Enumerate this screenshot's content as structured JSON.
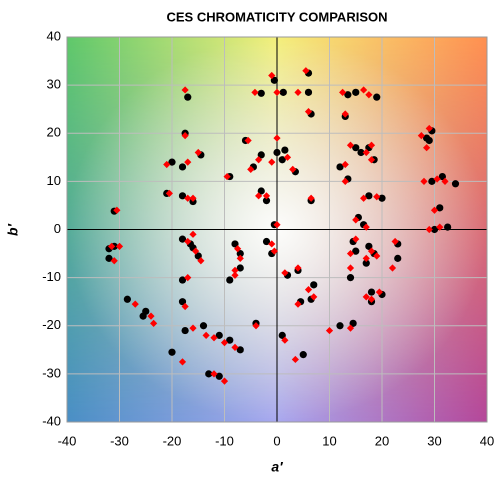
{
  "chart_data": {
    "type": "scatter",
    "title": "CES CHROMATICITY COMPARISON",
    "x_label": "a′",
    "y_label": "b′",
    "xlim": [
      -40,
      40
    ],
    "ylim": [
      -40,
      40
    ],
    "xticks": [
      -40,
      -30,
      -20,
      -10,
      0,
      10,
      20,
      30,
      40
    ],
    "yticks": [
      -40,
      -30,
      -20,
      -10,
      0,
      10,
      20,
      30,
      40
    ],
    "grid": true,
    "series": [
      {
        "color": "#000000",
        "marker": "circle",
        "x": [
          -0.5,
          6,
          -3,
          1.2,
          6,
          13.5,
          15,
          19,
          -17,
          -17.5,
          -14.5,
          -9,
          -20,
          -18,
          -21,
          -18,
          -16,
          -31,
          -6,
          -3,
          0,
          1.5,
          1,
          3.5,
          -4.5,
          -3,
          -2,
          -0.5,
          6.5,
          6.5,
          13,
          17.5,
          15,
          16,
          18.5,
          12,
          13.5,
          17.5,
          20,
          15.5,
          16.5,
          28.5,
          29.5,
          29,
          29.5,
          31.5,
          34,
          31,
          30,
          32.5,
          -32,
          -31,
          -32,
          -18,
          -16.5,
          -16,
          -15,
          -8,
          -7,
          -7,
          -9,
          -2,
          -1,
          2,
          4,
          7,
          -18,
          -18,
          -28.5,
          -25,
          -25.5,
          -17.5,
          -14,
          -11,
          -4,
          -20,
          -13,
          -11,
          -9,
          -7,
          1,
          5,
          4.5,
          6.5,
          12,
          14.5,
          14,
          15,
          14.5,
          17,
          17.5,
          18,
          18,
          20,
          18.5,
          23,
          23
        ],
        "y": [
          31,
          32.5,
          28.3,
          28.5,
          28.5,
          28,
          28.5,
          27.5,
          27.5,
          20,
          15.5,
          11,
          14,
          13,
          7.5,
          7,
          5.8,
          3.8,
          18.5,
          15.5,
          16,
          16.5,
          14.5,
          12,
          13,
          8,
          6,
          1,
          6,
          24,
          23.5,
          17,
          17,
          16,
          14.5,
          13,
          10.5,
          7,
          6.5,
          2.5,
          1,
          19,
          20.5,
          18.5,
          10,
          11,
          9.5,
          4.5,
          0,
          0.5,
          -4,
          -3.5,
          -6,
          -2,
          -3,
          -3.8,
          -5.5,
          -3,
          -5,
          -8,
          -10.5,
          -2.5,
          -5,
          -9.5,
          -8.5,
          -11.5,
          -10.5,
          -15,
          -14.5,
          -17,
          -18,
          -21,
          -20,
          -22,
          -19.5,
          -25.5,
          -30,
          -30.5,
          -23,
          -25,
          -22,
          -26,
          -15,
          -14.5,
          -20,
          -19.5,
          -10,
          -4.5,
          -2.5,
          -7,
          -3.5,
          -13,
          -15,
          -13.5,
          -5,
          -6,
          -3
        ]
      },
      {
        "color": "#ff0000",
        "marker": "diamond",
        "x": [
          -1,
          5.5,
          -4.2,
          0,
          4,
          12.5,
          16.5,
          17.5,
          -17.5,
          -17.5,
          -15,
          -9.5,
          -21,
          -17,
          -20.5,
          -17,
          -16,
          -30.5,
          -5.5,
          -3.5,
          0,
          2,
          -1,
          3,
          -5,
          -3.5,
          -2,
          0,
          6.5,
          6,
          13,
          18,
          14,
          17,
          18,
          13,
          13,
          16.5,
          19,
          15,
          17,
          27.5,
          29,
          28.5,
          28,
          30.5,
          32,
          30,
          29,
          31,
          -31.5,
          -30,
          -31,
          -17,
          -16,
          -15.5,
          -14.5,
          -7.5,
          -7,
          -8,
          -8,
          -1,
          -0.5,
          1.5,
          4,
          6,
          -17,
          -17.5,
          -27,
          -24,
          -23.5,
          -16,
          -13.5,
          -12,
          -4,
          -18,
          -12,
          -10,
          -10,
          -8,
          1.5,
          3.5,
          4,
          7,
          10,
          14,
          14,
          14,
          15,
          17,
          18,
          17,
          18,
          19.5,
          19,
          22,
          22.5
        ],
        "y": [
          32,
          33,
          28.5,
          28.5,
          28.5,
          28.5,
          29,
          28,
          29,
          19.5,
          16,
          11,
          13.5,
          14,
          7.5,
          6.5,
          6.5,
          4,
          18.5,
          14.5,
          19,
          15,
          14,
          12.5,
          12.5,
          7,
          7,
          1,
          6.5,
          24.5,
          24,
          17.5,
          17.5,
          16,
          14.5,
          13.5,
          10,
          6.5,
          6.8,
          2,
          0.5,
          19.5,
          21,
          17,
          10,
          10.5,
          10,
          4,
          0,
          0.5,
          -3.5,
          -3.5,
          -6.5,
          -2.5,
          -1,
          -4.5,
          -6.5,
          -4,
          -6,
          -8.5,
          -9.5,
          -3,
          -4.5,
          -9,
          -8,
          -12.5,
          -10,
          -16,
          -15.5,
          -18,
          -19.5,
          -20.5,
          -22,
          -22.5,
          -20,
          -27.5,
          -30,
          -31.5,
          -23.5,
          -24.5,
          -23,
          -27,
          -15.5,
          -14,
          -21,
          -20.5,
          -8,
          -5,
          -2,
          -6,
          -4.5,
          -14,
          -14.5,
          -13,
          -5.5,
          -8,
          -2.5
        ]
      }
    ]
  }
}
